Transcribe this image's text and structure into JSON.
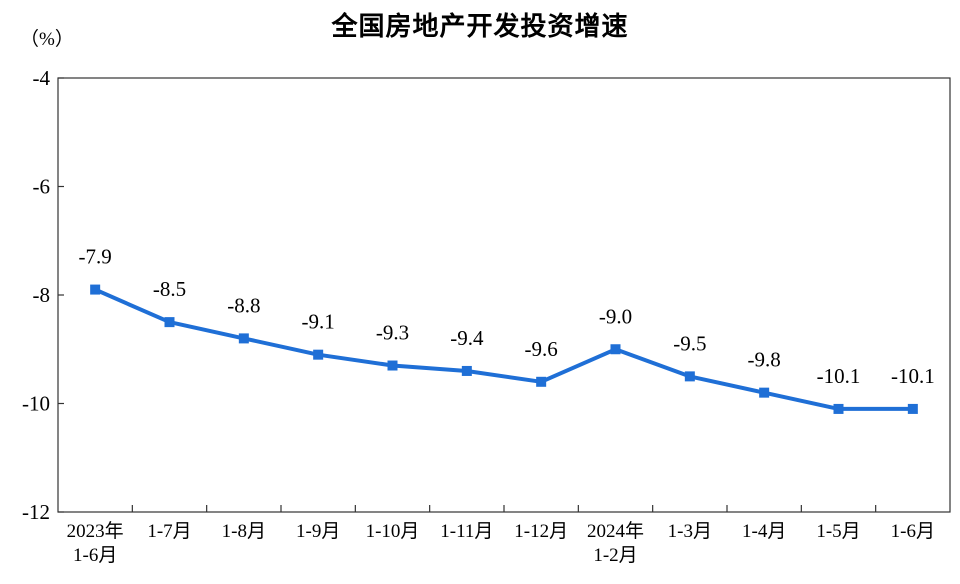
{
  "chart_data": {
    "type": "line",
    "title": "全国房地产开发投资增速",
    "unit": "（%）",
    "categories": [
      [
        "2023年",
        "1-6月"
      ],
      [
        "1-7月"
      ],
      [
        "1-8月"
      ],
      [
        "1-9月"
      ],
      [
        "1-10月"
      ],
      [
        "1-11月"
      ],
      [
        "1-12月"
      ],
      [
        "2024年",
        "1-2月"
      ],
      [
        "1-3月"
      ],
      [
        "1-4月"
      ],
      [
        "1-5月"
      ],
      [
        "1-6月"
      ]
    ],
    "values": [
      -7.9,
      -8.5,
      -8.8,
      -9.1,
      -9.3,
      -9.4,
      -9.6,
      -9.0,
      -9.5,
      -9.8,
      -10.1,
      -10.1
    ],
    "value_labels": [
      "-7.9",
      "-8.5",
      "-8.8",
      "-9.1",
      "-9.3",
      "-9.4",
      "-9.6",
      "-9.0",
      "-9.5",
      "-9.8",
      "-10.1",
      "-10.1"
    ],
    "yticks": [
      -4,
      -6,
      -8,
      -10,
      -12
    ],
    "ylim": [
      -12,
      -4
    ],
    "grid": false,
    "line_color": "#1f6fd6",
    "marker": "square"
  }
}
